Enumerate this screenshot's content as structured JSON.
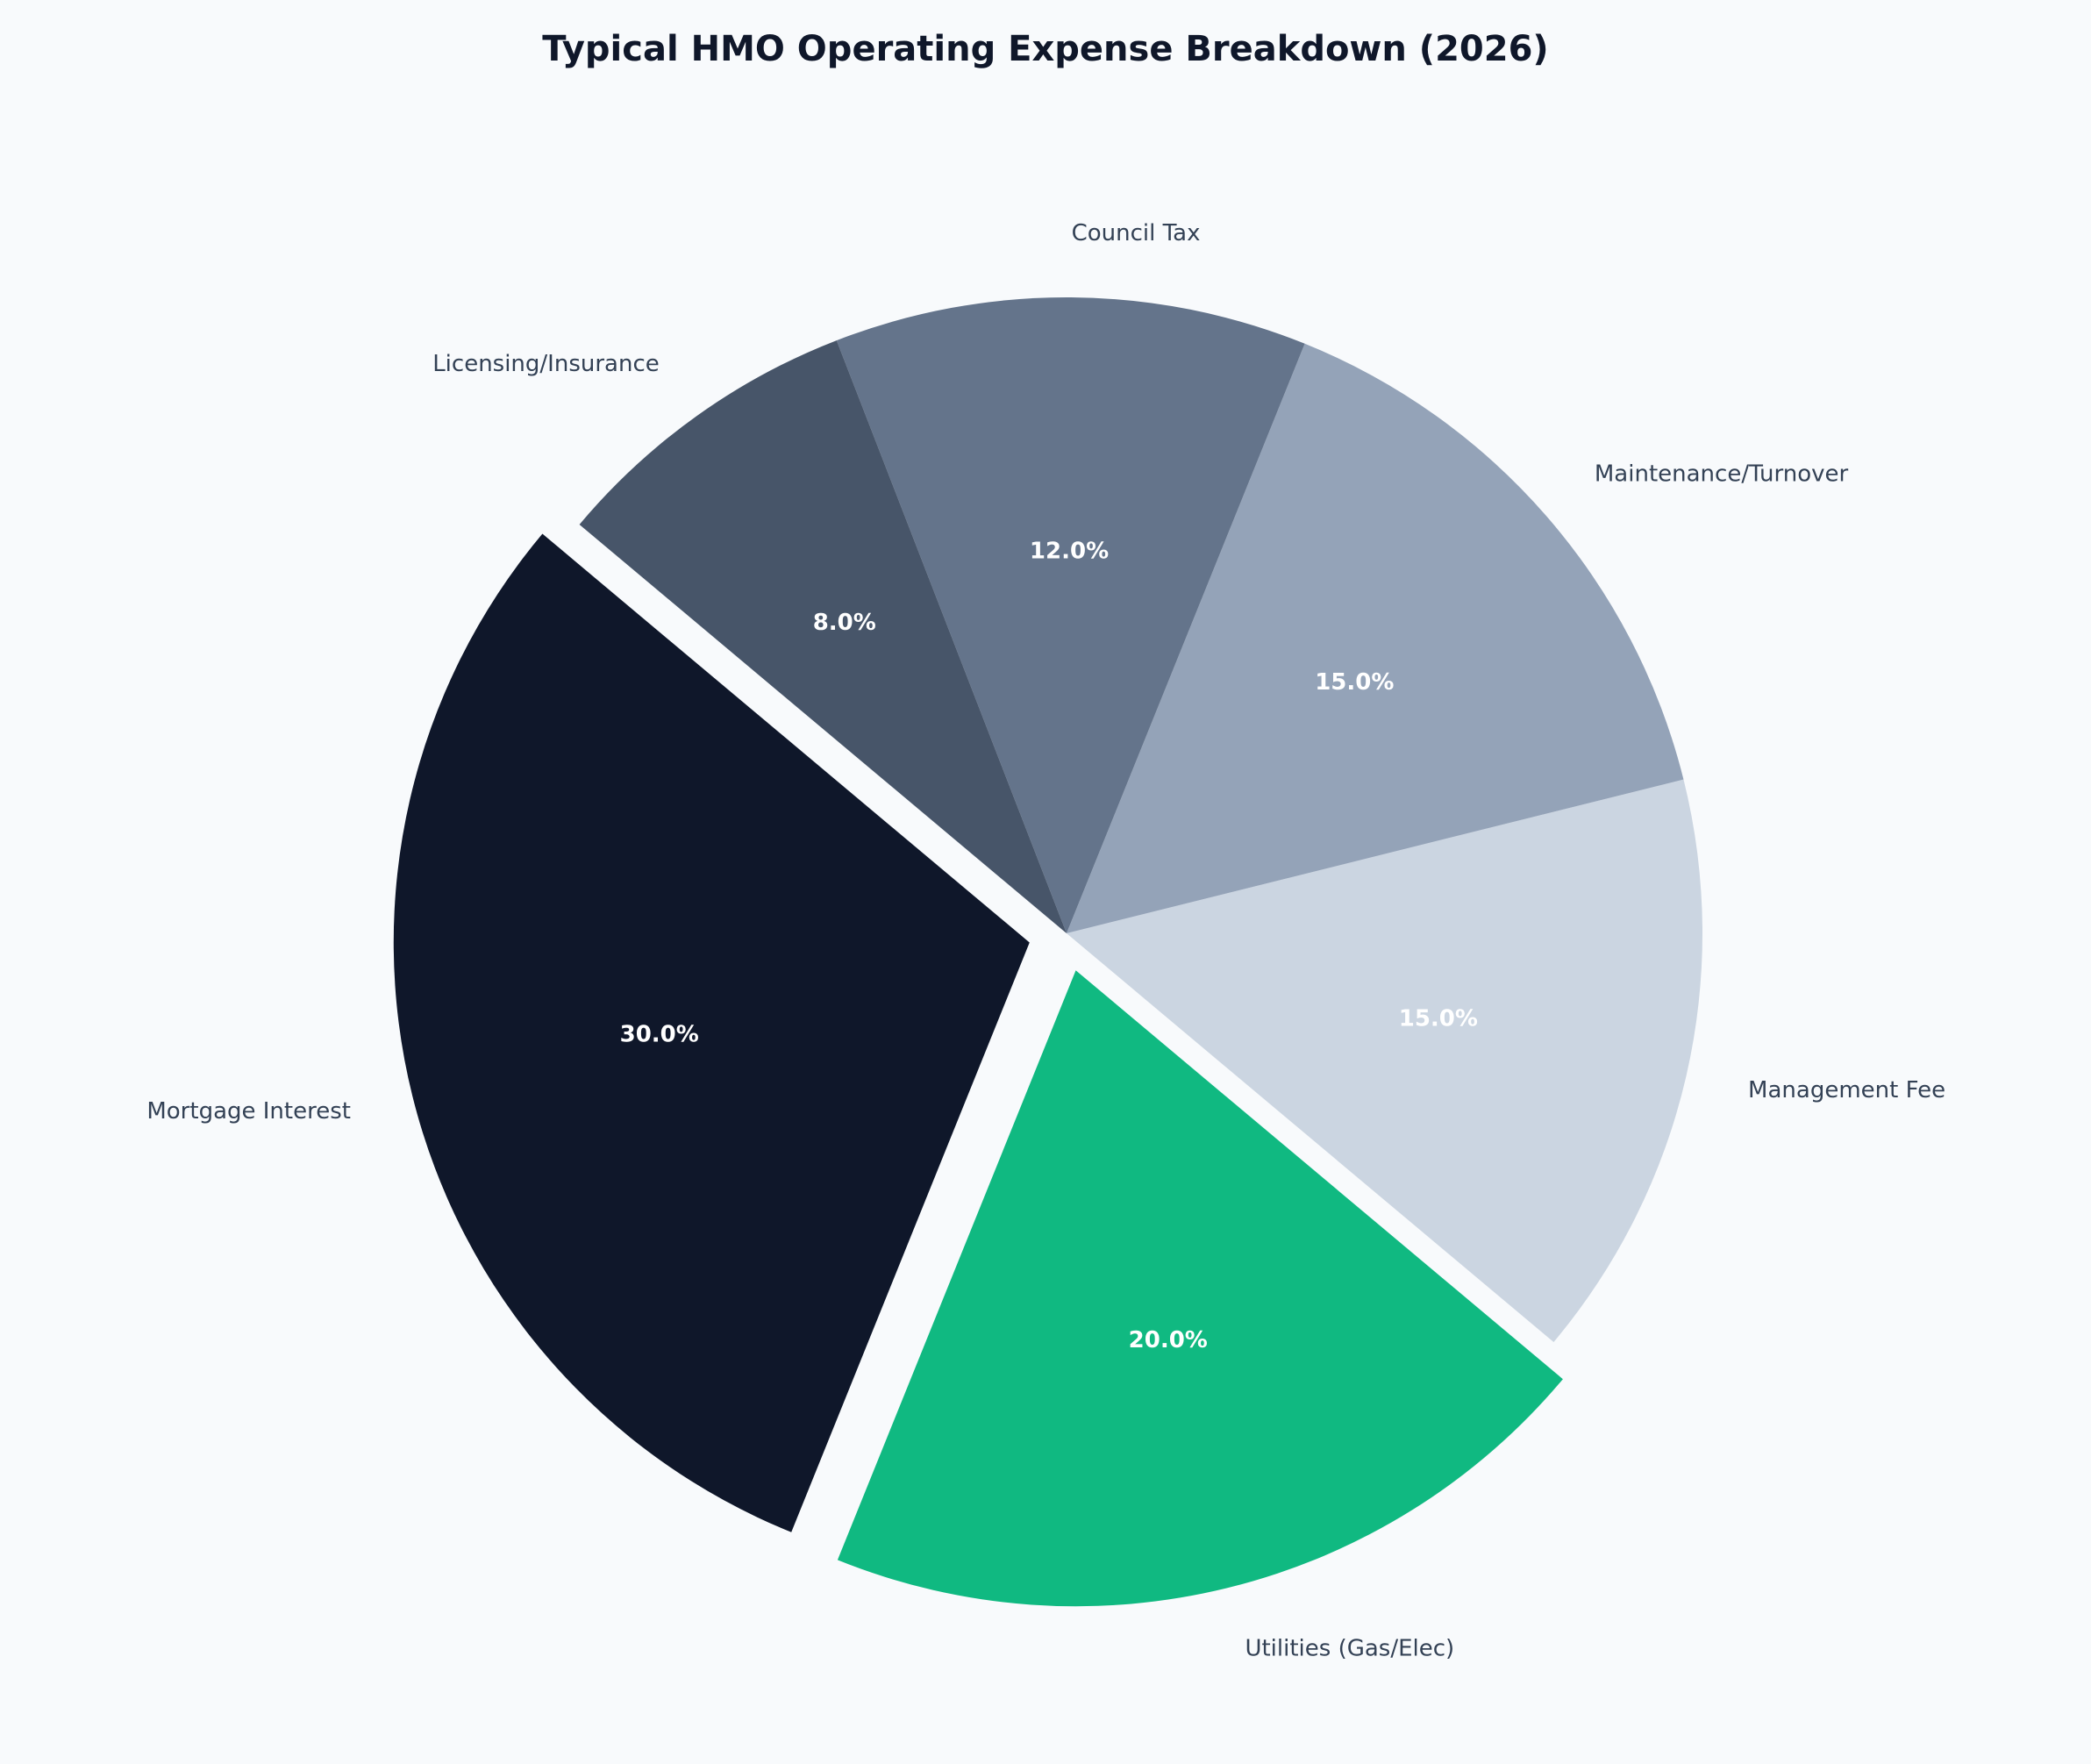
{
  "chart_data": {
    "type": "pie",
    "title": "Typical HMO Operating Expense Breakdown (2026)",
    "categories": [
      "Mortgage Interest",
      "Utilities (Gas/Elec)",
      "Management Fee",
      "Maintenance/Turnover",
      "Council Tax",
      "Licensing/Insurance"
    ],
    "values": [
      30,
      20,
      15,
      15,
      12,
      8
    ],
    "value_labels": [
      "30.0%",
      "20.0%",
      "15.0%",
      "15.0%",
      "12.0%",
      "8.0%"
    ],
    "colors": [
      "#0f172a",
      "#10b981",
      "#cbd5e1",
      "#94a3b8",
      "#64748b",
      "#475569"
    ]
  }
}
